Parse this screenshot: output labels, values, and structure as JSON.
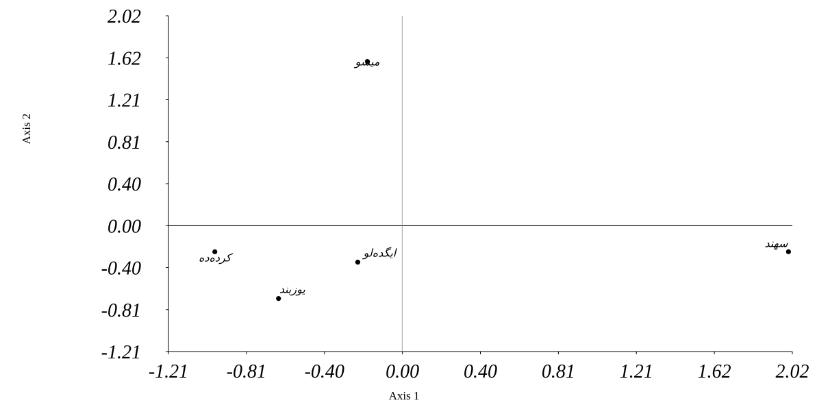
{
  "chart_data": {
    "type": "scatter",
    "xlabel": "Axis 1",
    "ylabel": "Axis 2",
    "xlim": [
      -1.21,
      2.02
    ],
    "ylim": [
      -1.21,
      2.02
    ],
    "xticks": [
      "-1.21",
      "-0.81",
      "-0.40",
      "0.00",
      "0.40",
      "0.81",
      "1.21",
      "1.62",
      "2.02"
    ],
    "yticks": [
      "2.02",
      "1.62",
      "1.21",
      "0.81",
      "0.40",
      "0.00",
      "-0.40",
      "-0.81",
      "-1.21"
    ],
    "points": [
      {
        "label": "میشو",
        "x": -0.18,
        "y": 1.58
      },
      {
        "label": "سهند",
        "x": 2.0,
        "y": -0.25
      },
      {
        "label": "کرده‌ده",
        "x": -0.97,
        "y": -0.25
      },
      {
        "label": "ایگده‌لو",
        "x": -0.23,
        "y": -0.35
      },
      {
        "label": "یوزبند",
        "x": -0.64,
        "y": -0.7
      }
    ],
    "grid": false
  }
}
